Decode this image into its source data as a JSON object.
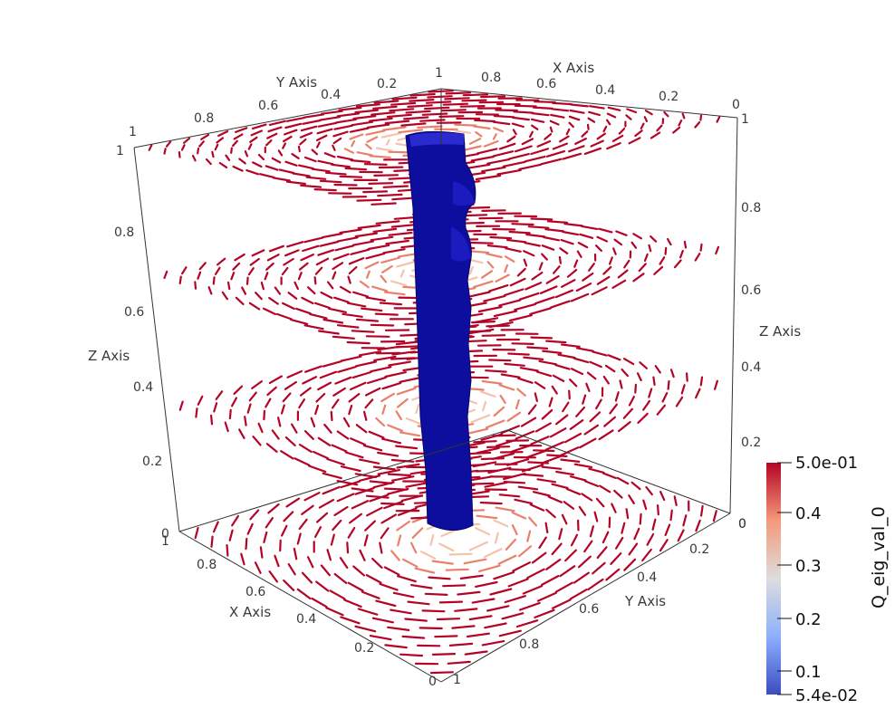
{
  "scene": {
    "field_name": "Q_eig_val_0",
    "axes": {
      "x_title": "X Axis",
      "y_title": "Y Axis",
      "z_title": "Z Axis"
    },
    "ticks": {
      "top_y": [
        "0.2",
        "0.4",
        "0.6",
        "0.8",
        "1"
      ],
      "top_x": [
        "0",
        "0.2",
        "0.4",
        "0.6",
        "0.8",
        "1"
      ],
      "left_z": [
        "0",
        "0.2",
        "0.4",
        "0.6",
        "0.8",
        "1"
      ],
      "right_z": [
        "0",
        "0.2",
        "0.4",
        "0.6",
        "0.8",
        "1"
      ],
      "bottom_x": [
        "0",
        "0.2",
        "0.4",
        "0.6",
        "0.8",
        "1"
      ],
      "bottom_y": [
        "0",
        "0.2",
        "0.4",
        "0.6",
        "0.8",
        "1"
      ]
    },
    "slice_levels_z": [
      0,
      0.33,
      0.67,
      1
    ],
    "colors": {
      "high": "#b40426",
      "mid": "#dddddd",
      "low": "#3b4cc0",
      "object": "#0a0a9a"
    }
  },
  "colorbar": {
    "title": "Q_eig_val_0",
    "max_label": "5.0e-01",
    "min_label": "5.4e-02",
    "tick_labels": [
      "0.4",
      "0.3",
      "0.2",
      "0.1"
    ],
    "range": [
      0.054,
      0.5
    ],
    "tick_values": [
      0.4,
      0.3,
      0.2,
      0.1
    ]
  }
}
